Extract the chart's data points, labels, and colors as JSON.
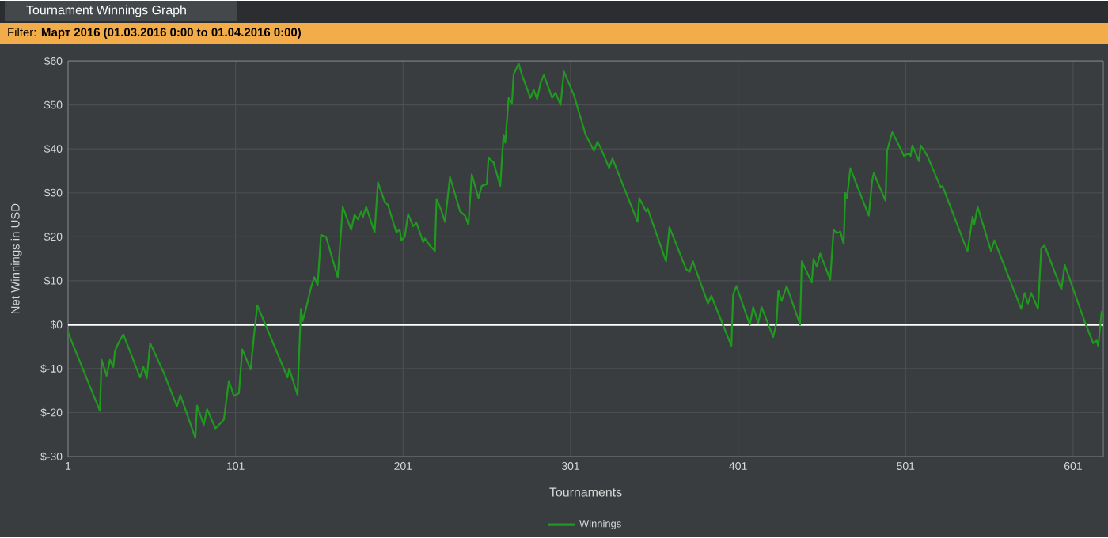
{
  "chart_data": {
    "type": "line",
    "title": "Tournament Winnings Graph",
    "subtitle": "Filter: **Март 2016 (01.03.2016 0:00 to 01.04.2016 0:00)**",
    "xlabel": "Tournaments",
    "ylabel": "Net Winnings in USD",
    "x": [
      1,
      20,
      21,
      24,
      26,
      28,
      29,
      31,
      34,
      44,
      46,
      48,
      50,
      58,
      66,
      68,
      77,
      78,
      82,
      84,
      89,
      94,
      97,
      100,
      103,
      105,
      110,
      112,
      114,
      132,
      133,
      138,
      140,
      141,
      143,
      146,
      148,
      150,
      152,
      155,
      162,
      165,
      170,
      172,
      174,
      176,
      177,
      179,
      184,
      186,
      190,
      192,
      197,
      199,
      200,
      202,
      204,
      207,
      209,
      211,
      213,
      214,
      217,
      220,
      221,
      224,
      226,
      229,
      235,
      238,
      240,
      242,
      246,
      248,
      251,
      252,
      255,
      259,
      261,
      262,
      264,
      266,
      267,
      270,
      272,
      277,
      279,
      281,
      283,
      285,
      290,
      292,
      295,
      297,
      303,
      310,
      315,
      317,
      319,
      324,
      326,
      341,
      342,
      346,
      347,
      358,
      360,
      370,
      372,
      374,
      383,
      385,
      397,
      398,
      400,
      408,
      410,
      413,
      415,
      422,
      424,
      425,
      427,
      430,
      438,
      439,
      445,
      446,
      448,
      450,
      456,
      458,
      460,
      462,
      464,
      465,
      466,
      468,
      479,
      481,
      482,
      489,
      490,
      493,
      497,
      500,
      503,
      504,
      505,
      509,
      510,
      514,
      522,
      523,
      536,
      538,
      541,
      542,
      544,
      552,
      554,
      570,
      572,
      574,
      576,
      580,
      582,
      584,
      594,
      596,
      608,
      613,
      615,
      616,
      618,
      619
    ],
    "series": [
      {
        "name": "Winnings",
        "color": "#1f9a1f",
        "values": [
          -1.8,
          -19.6,
          -8,
          -11.6,
          -8,
          -9.6,
          -6,
          -4.2,
          -2.2,
          -12,
          -9.6,
          -12.2,
          -4.2,
          -10.8,
          -18.6,
          -16,
          -25.8,
          -18.4,
          -22.8,
          -19.2,
          -23.6,
          -21.6,
          -12.8,
          -16.2,
          -15.6,
          -5.6,
          -10.2,
          -2.4,
          4.4,
          -12,
          -10,
          -16,
          3.6,
          0.8,
          3.6,
          8.4,
          10.8,
          9,
          20.4,
          20,
          10.8,
          26.8,
          21.6,
          25,
          24,
          25.7,
          24.5,
          26.8,
          21,
          32.4,
          28,
          27.2,
          21,
          21.6,
          19.2,
          20,
          25.2,
          22.4,
          23.2,
          21,
          18.8,
          19.6,
          18,
          16.8,
          28.6,
          25.8,
          23.4,
          33.6,
          25.8,
          24.8,
          22.8,
          34.2,
          28.8,
          31.6,
          32,
          38,
          36.9,
          31.6,
          43.2,
          41.4,
          51.6,
          50.4,
          57,
          59.4,
          56.8,
          51.6,
          53.4,
          51.3,
          54.9,
          56.8,
          51.6,
          52.8,
          50,
          57.6,
          52.2,
          43.2,
          39.6,
          41.6,
          40.2,
          35.7,
          37.8,
          23.4,
          28.8,
          25.8,
          26.4,
          14.4,
          22.2,
          12.6,
          12,
          14.4,
          4.8,
          6.6,
          -4.8,
          6.8,
          8.8,
          0,
          4,
          0.4,
          4,
          -2.8,
          0.8,
          7.8,
          5.4,
          8.8,
          0,
          14.4,
          9.6,
          15,
          13.2,
          16.2,
          10.2,
          21.6,
          20.8,
          21.2,
          18.4,
          30,
          28.8,
          35.6,
          24.8,
          32.8,
          34.5,
          28.2,
          39.6,
          43.8,
          40.8,
          38.4,
          39,
          38.4,
          40.8,
          37.2,
          40.8,
          38.4,
          31.2,
          31.6,
          18.6,
          16.8,
          24.6,
          22.8,
          26.8,
          16.8,
          19.2,
          3.6,
          7.2,
          4.8,
          7.2,
          3.6,
          17.4,
          18,
          8,
          13.6,
          0.6,
          -4.2,
          -3.6,
          -4.8,
          3,
          1.8
        ]
      }
    ],
    "xlim": [
      1,
      619
    ],
    "ylim": [
      -30,
      60
    ],
    "xticks": [
      1,
      101,
      201,
      301,
      401,
      501,
      601
    ],
    "yticks": [
      {
        "value": -30,
        "label": "$-30"
      },
      {
        "value": -20,
        "label": "$-20"
      },
      {
        "value": -10,
        "label": "$-10"
      },
      {
        "value": 0,
        "label": "$0"
      },
      {
        "value": 10,
        "label": "$10"
      },
      {
        "value": 20,
        "label": "$20"
      },
      {
        "value": 30,
        "label": "$30"
      },
      {
        "value": 40,
        "label": "$40"
      },
      {
        "value": 50,
        "label": "$50"
      },
      {
        "value": 60,
        "label": "$60"
      }
    ],
    "grid": true,
    "legend": "bottom",
    "line_style": "solid",
    "ref_lines": [
      {
        "axis": "y",
        "value": 0,
        "color": "#ffffff"
      }
    ]
  }
}
